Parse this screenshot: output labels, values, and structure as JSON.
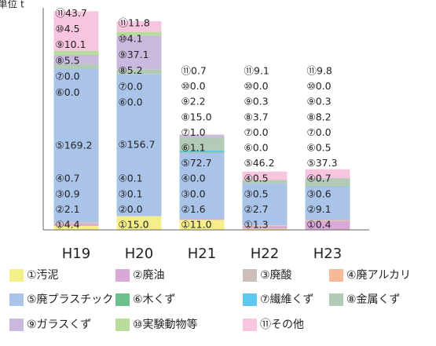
{
  "chart_data": {
    "type": "stacked_bar",
    "ylabel": "単位 t",
    "categories": [
      "H19",
      "H20",
      "H21",
      "H22",
      "H23"
    ],
    "ylim": [
      0,
      250
    ],
    "series": [
      {
        "name": "①汚泥",
        "color": "#f5ef8a",
        "values": [
          4.4,
          15.0,
          11.0,
          1.3,
          0.4
        ],
        "value_labels": [
          "①4.4",
          "①15.0",
          "①11.0",
          "①1.3",
          "①0.4"
        ]
      },
      {
        "name": "②廃油",
        "color": "#d9a8d6",
        "values": [
          2.1,
          0.0,
          1.6,
          2.7,
          9.1
        ],
        "value_labels": [
          "②2.1",
          "②0.0",
          "②1.6",
          "②2.7",
          "②9.1"
        ]
      },
      {
        "name": "③廃酸",
        "color": "#cdbfb8",
        "values": [
          0.9,
          0.1,
          0.0,
          0.5,
          0.6
        ],
        "value_labels": [
          "③0.9",
          "③0.1",
          "③0.0",
          "③0.5",
          "③0.6"
        ]
      },
      {
        "name": "④廃アルカリ",
        "color": "#f7b89a",
        "values": [
          0.7,
          0.1,
          0.0,
          0.5,
          0.7
        ],
        "value_labels": [
          "④0.7",
          "④0.1",
          "④0.0",
          "④0.5",
          "④0.7"
        ]
      },
      {
        "name": "⑤廃プラスチック",
        "color": "#a9c4e8",
        "values": [
          169.2,
          156.7,
          72.7,
          46.2,
          37.3
        ],
        "value_labels": [
          "⑤169.2",
          "⑤156.7",
          "⑤72.7",
          "⑤46.2",
          "⑤37.3"
        ]
      },
      {
        "name": "⑥木くず",
        "color": "#6cc08b",
        "values": [
          0.0,
          0.0,
          1.1,
          0.0,
          0.5
        ],
        "value_labels": [
          "⑥0.0",
          "⑥0.0",
          "⑥1.1",
          "⑥0.0",
          "⑥0.5"
        ]
      },
      {
        "name": "⑦繊維くず",
        "color": "#5cc8f0",
        "values": [
          0.0,
          0.0,
          1.0,
          0.0,
          0.0
        ],
        "value_labels": [
          "⑦0.0",
          "⑦0.0",
          "⑦1.0",
          "⑦0.0",
          "⑦0.0"
        ]
      },
      {
        "name": "⑧金属くず",
        "color": "#b3cbb6",
        "values": [
          5.5,
          5.2,
          15.0,
          3.7,
          8.2
        ],
        "value_labels": [
          "⑧5.5",
          "⑧5.2",
          "⑧15.0",
          "⑧3.7",
          "⑧8.2"
        ]
      },
      {
        "name": "⑨ガラスくず",
        "color": "#c9b9de",
        "values": [
          10.1,
          37.1,
          2.2,
          0.3,
          0.3
        ],
        "value_labels": [
          "⑨10.1",
          "⑨37.1",
          "⑨2.2",
          "⑨0.3",
          "⑨0.3"
        ]
      },
      {
        "name": "⑩実験動物等",
        "color": "#b8dc9a",
        "values": [
          4.5,
          4.1,
          0.0,
          0.0,
          0.0
        ],
        "value_labels": [
          "⑩4.5",
          "⑩4.1",
          "⑩0.0",
          "⑩0.0",
          "⑩0.0"
        ]
      },
      {
        "name": "⑪その他",
        "color": "#f7c6de",
        "values": [
          43.7,
          11.8,
          0.7,
          9.1,
          9.8
        ],
        "value_labels": [
          "⑪43.7",
          "⑪11.8",
          "⑪0.7",
          "⑪9.1",
          "⑪9.8"
        ]
      }
    ]
  }
}
